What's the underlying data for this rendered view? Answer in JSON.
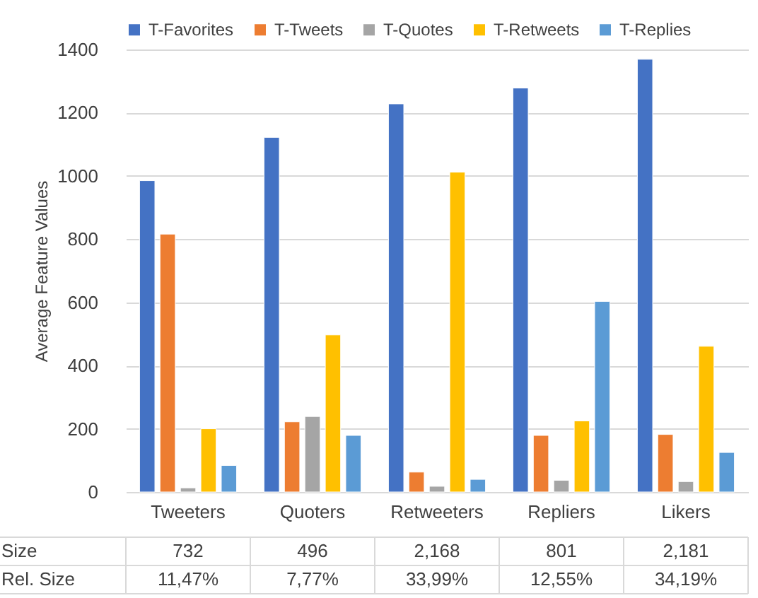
{
  "chart_data": {
    "type": "bar",
    "ylabel": "Average Feature Values",
    "categories": [
      "Tweeters",
      "Quoters",
      "Retweeters",
      "Repliers",
      "Likers"
    ],
    "series": [
      {
        "name": "T-Favorites",
        "color": "#4472c4",
        "values": [
          985,
          1122,
          1228,
          1278,
          1369
        ]
      },
      {
        "name": "T-Tweets",
        "color": "#ed7d31",
        "values": [
          816,
          222,
          63,
          179,
          182
        ]
      },
      {
        "name": "T-Quotes",
        "color": "#a5a5a5",
        "values": [
          13,
          239,
          18,
          37,
          33
        ]
      },
      {
        "name": "T-Retweets",
        "color": "#ffc000",
        "values": [
          200,
          497,
          1012,
          225,
          461
        ]
      },
      {
        "name": "T-Replies",
        "color": "#5b9bd5",
        "values": [
          84,
          179,
          40,
          603,
          125
        ]
      }
    ],
    "ylim": [
      0,
      1400
    ],
    "yticks": [
      0,
      200,
      400,
      600,
      800,
      1000,
      1200,
      1400
    ],
    "grid": "y",
    "legend": "top",
    "annotations": [
      "Size",
      "732",
      "496",
      "2,168",
      "801",
      "2,181",
      "Rel. Size",
      "11,47%",
      "7,77%",
      "33,99%",
      "12,55%",
      "34,19%"
    ]
  }
}
